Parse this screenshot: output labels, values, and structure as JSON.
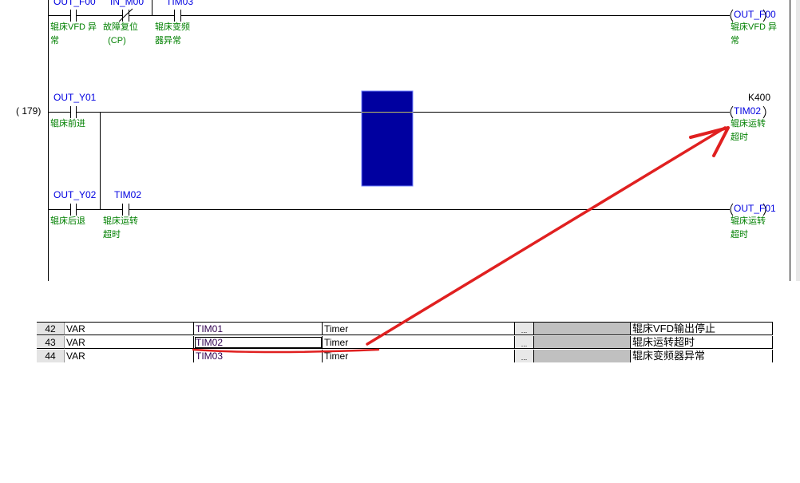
{
  "ladder": {
    "rung_number": "(   179)",
    "top_rung": {
      "contacts": [
        {
          "var": "OUT_F00",
          "comment": [
            "辊床VFD 异",
            "常"
          ]
        },
        {
          "var": "IN_M00",
          "comment": [
            "故障复位",
            "(CP)"
          ]
        },
        {
          "var": "TIM03",
          "comment": [
            "辊床变频",
            "器异常"
          ]
        }
      ],
      "coil": {
        "var": "OUT_F00",
        "comment": [
          "辊床VFD 异",
          "常"
        ]
      }
    },
    "rung_179": {
      "contact": {
        "var": "OUT_Y01",
        "comment": [
          "辊床前进"
        ]
      },
      "coil": {
        "preset": "K400",
        "var": "TIM02",
        "comment": [
          "辊床运转",
          "超时"
        ]
      }
    },
    "rung_next": {
      "contacts": [
        {
          "var": "OUT_Y02",
          "comment": [
            "辊床后退"
          ]
        },
        {
          "var": "TIM02",
          "comment": [
            "辊床运转",
            "超时"
          ]
        }
      ],
      "coil": {
        "var": "OUT_F01",
        "comment": [
          "辊床运转",
          "超时"
        ]
      }
    },
    "highlight_color": "#0000a0",
    "annotation_color": "#e02020"
  },
  "var_table": {
    "rows": [
      {
        "num": "42",
        "class": "VAR",
        "name": "TIM01",
        "type": "Timer",
        "button": "...",
        "comment": "辊床VFD输出停止"
      },
      {
        "num": "43",
        "class": "VAR",
        "name": "TIM02",
        "type": "Timer",
        "button": "...",
        "comment": "辊床运转超时"
      },
      {
        "num": "44",
        "class": "VAR",
        "name": "TIM03",
        "type": "Timer",
        "button": "...",
        "comment": "辊床变频器异常"
      }
    ]
  }
}
